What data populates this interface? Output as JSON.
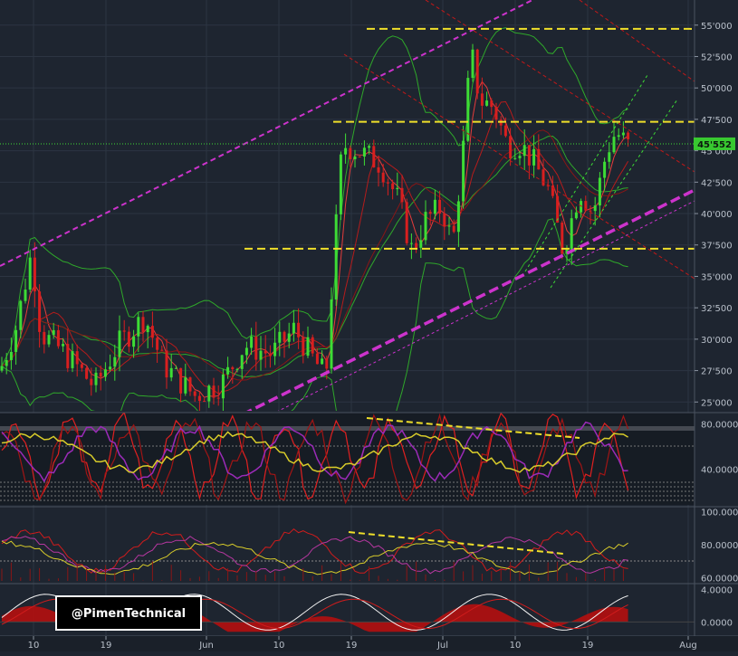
{
  "chart_data": [
    {
      "type": "candlestick",
      "name": "price",
      "y_ticks": [
        "55'000",
        "52'500",
        "50'000",
        "47'500",
        "45'000",
        "42'500",
        "40'000",
        "37'500",
        "35'000",
        "32'500",
        "30'000",
        "27'500",
        "25'000"
      ],
      "ylim": [
        24300,
        57000
      ],
      "last_price_label": "45'552",
      "last_price": 45552,
      "x_ticks": [
        "10",
        "19",
        "Jun",
        "10",
        "19",
        "Jul",
        "10",
        "19",
        "Aug"
      ],
      "horizontal_levels": [
        54700,
        47300,
        37200
      ],
      "colors": {
        "up": "#3ddc35",
        "down": "#d81f1f",
        "band": "#2fa82a",
        "channel": "#cc33cc",
        "trend": "#c21818",
        "level": "#f0e02a"
      }
    },
    {
      "type": "line",
      "name": "oscillator-1",
      "y_ticks": [
        "80.0000",
        "40.0000"
      ],
      "ylim": [
        10,
        90
      ]
    },
    {
      "type": "line",
      "name": "oscillator-2",
      "y_ticks": [
        "100.0000",
        "80.0000",
        "60.0000"
      ],
      "ylim": [
        58,
        102
      ]
    },
    {
      "type": "area",
      "name": "histogram",
      "y_ticks": [
        "4.0000",
        "0.0000"
      ],
      "ylim": [
        -1.4,
        4.6
      ]
    }
  ],
  "watermark": "@PimenTechnical"
}
